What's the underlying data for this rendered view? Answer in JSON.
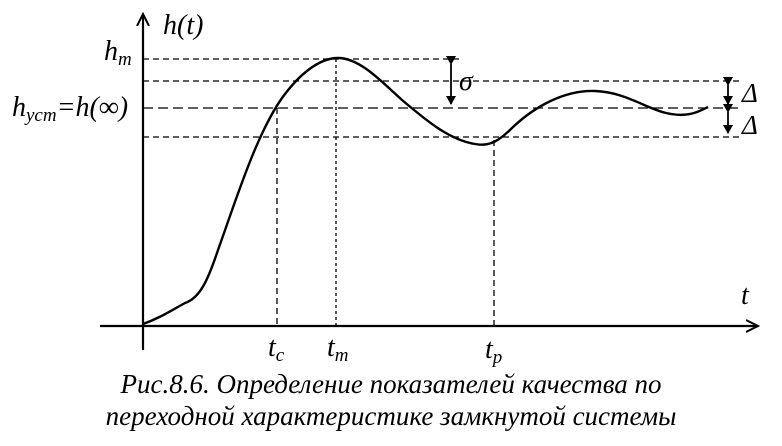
{
  "labels": {
    "y_axis": "h(t)",
    "x_axis": "t",
    "h_m": "h",
    "h_m_sub": "m",
    "h_ust_lhs": "h",
    "h_ust_sub": "уст",
    "h_ust_rhs": "=h(∞)",
    "sigma": "σ",
    "delta_upper": "Δ",
    "delta_lower": "Δ",
    "t_c": "t",
    "t_c_sub": "c",
    "t_m": "t",
    "t_m_sub": "m",
    "t_p": "t",
    "t_p_sub": "p"
  },
  "caption": {
    "line1": "Рис.8.6. Определение показателей качества по",
    "line2": "переходной характеристике замкнутой системы"
  }
}
